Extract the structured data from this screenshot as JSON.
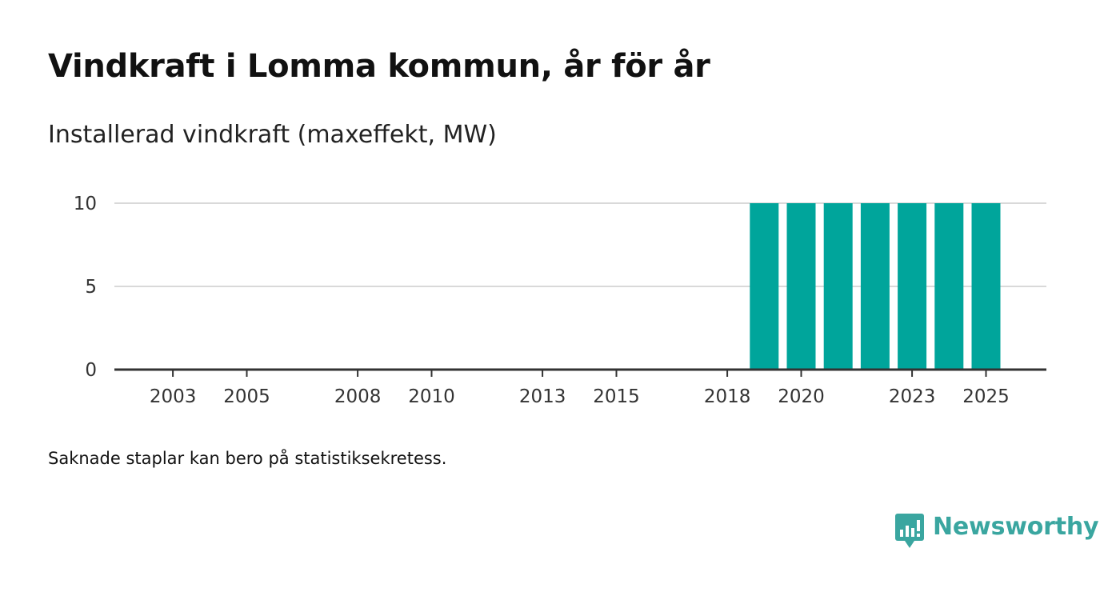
{
  "title": "Vindkraft i Lomma kommun, år för år",
  "subtitle": "Installerad vindkraft (maxeffekt, MW)",
  "footnote": "Saknade staplar kan bero på statistiksekretess.",
  "brand": {
    "name": "Newsworthy",
    "icon": "newsworthy-logo-icon",
    "color": "#3aa6a0"
  },
  "chart_data": {
    "type": "bar",
    "title": "Vindkraft i Lomma kommun, år för år",
    "ylabel": "Installerad vindkraft (maxeffekt, MW)",
    "xlabel": "",
    "categories": [
      2003,
      2004,
      2005,
      2006,
      2007,
      2008,
      2009,
      2010,
      2011,
      2012,
      2013,
      2014,
      2015,
      2016,
      2017,
      2018,
      2019,
      2020,
      2021,
      2022,
      2023,
      2024,
      2025
    ],
    "values": [
      0,
      0,
      0,
      0,
      0,
      0,
      0,
      0,
      0,
      0,
      0,
      0,
      0,
      0,
      0,
      0,
      10,
      10,
      10,
      10,
      10,
      10,
      10
    ],
    "x_tick_labels": [
      "2003",
      "2005",
      "2008",
      "2010",
      "2013",
      "2015",
      "2018",
      "2020",
      "2023",
      "2025"
    ],
    "y_ticks": [
      0,
      5,
      10
    ],
    "ylim": [
      0,
      10
    ],
    "grid": true,
    "bar_color": "#00a59b",
    "grid_color": "#d9d9d9",
    "axis_color": "#333333"
  }
}
